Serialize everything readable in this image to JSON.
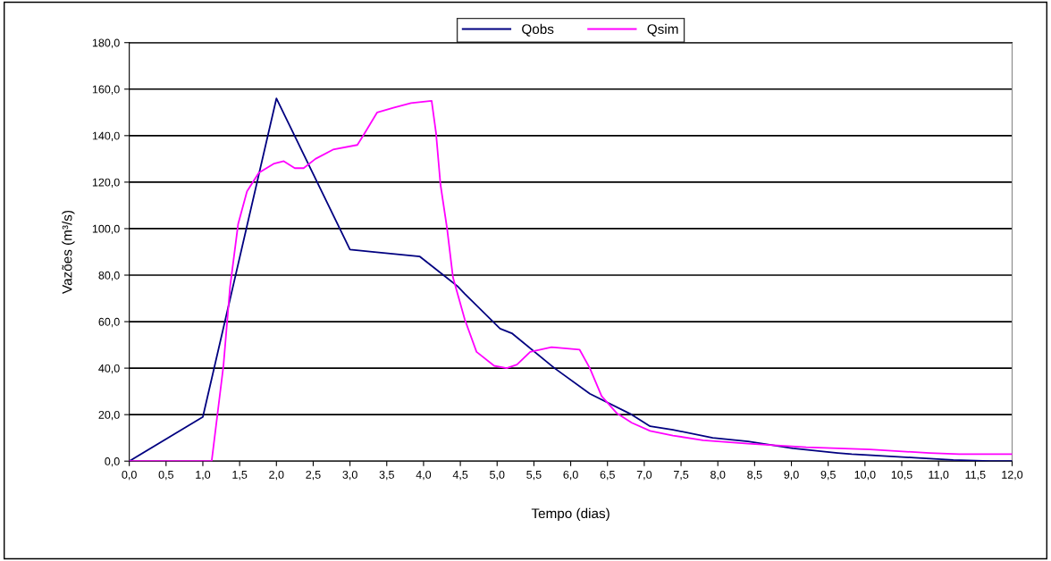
{
  "chart_data": {
    "type": "line",
    "xlabel": "Tempo (dias)",
    "ylabel": "Vazões (m³/s)",
    "xlim": [
      0,
      12
    ],
    "ylim": [
      0,
      180
    ],
    "xticks": [
      {
        "value": 0,
        "label": "0,0"
      },
      {
        "value": 0.5,
        "label": "0,5"
      },
      {
        "value": 1,
        "label": "1,0"
      },
      {
        "value": 1.5,
        "label": "1,5"
      },
      {
        "value": 2,
        "label": "2,0"
      },
      {
        "value": 2.5,
        "label": "2,5"
      },
      {
        "value": 3,
        "label": "3,0"
      },
      {
        "value": 3.5,
        "label": "3,5"
      },
      {
        "value": 4,
        "label": "4,0"
      },
      {
        "value": 4.5,
        "label": "4,5"
      },
      {
        "value": 5,
        "label": "5,0"
      },
      {
        "value": 5.5,
        "label": "5,5"
      },
      {
        "value": 6,
        "label": "6,0"
      },
      {
        "value": 6.5,
        "label": "6,5"
      },
      {
        "value": 7,
        "label": "7,0"
      },
      {
        "value": 7.5,
        "label": "7,5"
      },
      {
        "value": 8,
        "label": "8,0"
      },
      {
        "value": 8.5,
        "label": "8,5"
      },
      {
        "value": 9,
        "label": "9,0"
      },
      {
        "value": 9.5,
        "label": "9,5"
      },
      {
        "value": 10,
        "label": "10,0"
      },
      {
        "value": 10.5,
        "label": "10,5"
      },
      {
        "value": 11,
        "label": "11,0"
      },
      {
        "value": 11.5,
        "label": "11,5"
      },
      {
        "value": 12,
        "label": "12,0"
      }
    ],
    "yticks": [
      {
        "value": 0,
        "label": "0,0"
      },
      {
        "value": 20,
        "label": "20,0"
      },
      {
        "value": 40,
        "label": "40,0"
      },
      {
        "value": 60,
        "label": "60,0"
      },
      {
        "value": 80,
        "label": "80,0"
      },
      {
        "value": 100,
        "label": "100,0"
      },
      {
        "value": 120,
        "label": "120,0"
      },
      {
        "value": 140,
        "label": "140,0"
      },
      {
        "value": 160,
        "label": "160,0"
      },
      {
        "value": 180,
        "label": "180,0"
      }
    ],
    "grid": "y",
    "legend": "top",
    "marker": "none",
    "line_style": "solid",
    "series": [
      {
        "name": "Qobs",
        "color": "#000080",
        "x": [
          0,
          1.0,
          2.0,
          3.0,
          3.3,
          3.95,
          4.07,
          4.47,
          4.56,
          5.04,
          5.2,
          5.78,
          6.26,
          6.83,
          7.08,
          7.39,
          7.93,
          8.41,
          9.02,
          9.63,
          9.82,
          10.67,
          11.2,
          11.7,
          12.0
        ],
        "values": [
          0,
          19,
          156,
          91,
          90,
          88,
          85,
          75,
          72,
          57,
          55,
          40,
          29,
          20,
          15,
          13.5,
          10,
          8.5,
          5.5,
          3.5,
          3,
          1.5,
          0.5,
          0,
          0
        ]
      },
      {
        "name": "Qsim",
        "color": "#ff00ff",
        "x": [
          0,
          1.12,
          1.28,
          1.37,
          1.48,
          1.6,
          1.76,
          1.97,
          2.1,
          2.25,
          2.37,
          2.53,
          2.77,
          3.1,
          3.18,
          3.37,
          3.59,
          3.83,
          4.11,
          4.17,
          4.23,
          4.32,
          4.4,
          4.56,
          4.72,
          4.96,
          5.13,
          5.27,
          5.45,
          5.74,
          6.12,
          6.26,
          6.42,
          6.63,
          6.83,
          7.08,
          7.39,
          7.8,
          8.41,
          9.2,
          10.07,
          10.88,
          11.28,
          12.0
        ],
        "values": [
          0,
          0,
          41,
          75,
          102,
          116,
          124,
          128,
          129,
          126,
          126,
          130,
          134,
          136,
          140,
          150,
          152,
          154,
          155,
          141,
          119,
          100,
          79,
          61,
          47,
          41,
          40,
          41.5,
          47,
          49,
          48,
          40,
          28,
          20.5,
          16.5,
          13,
          11,
          9,
          7.5,
          6,
          5,
          3.5,
          3,
          3
        ]
      }
    ]
  }
}
